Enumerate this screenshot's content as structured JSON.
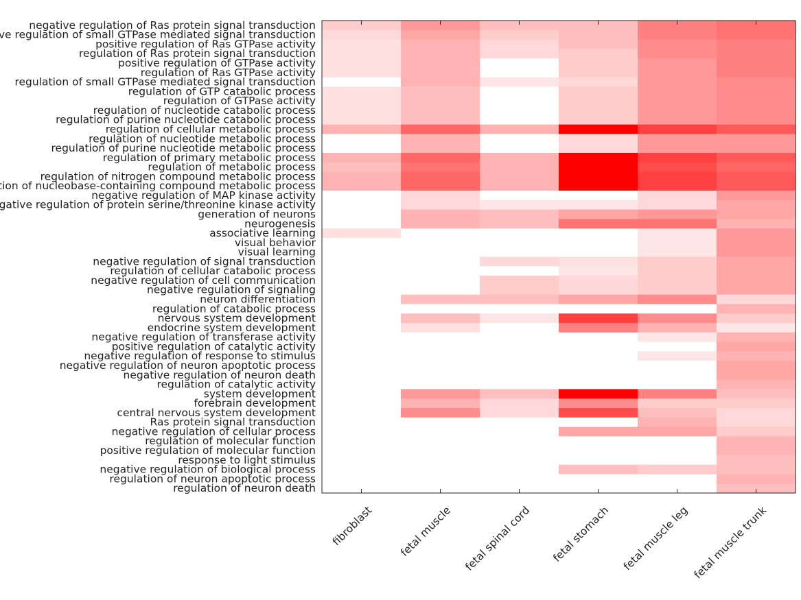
{
  "chart_data": {
    "type": "heatmap",
    "title": "",
    "xlabel": "",
    "ylabel": "",
    "color_scale": {
      "low": "#ffffff",
      "high": "#ff0000"
    },
    "columns": [
      "fibroblast",
      "fetal muscle",
      "fetal spinal cord",
      "fetal stomach",
      "fetal muscle leg",
      "fetal muscle trunk"
    ],
    "rows": [
      "negative regulation of Ras protein signal transduction",
      "negative regulation of small GTPase mediated signal transduction",
      "positive regulation of Ras GTPase activity",
      "regulation of Ras protein signal transduction",
      "positive regulation of GTPase activity",
      "regulation of Ras GTPase activity",
      "regulation of small GTPase mediated signal transduction",
      "regulation of GTP catabolic process",
      "regulation of GTPase activity",
      "regulation of nucleotide catabolic process",
      "regulation of purine nucleotide catabolic process",
      "regulation of cellular metabolic process",
      "regulation of nucleotide metabolic process",
      "regulation of purine nucleotide metabolic process",
      "regulation of primary metabolic process",
      "regulation of metabolic process",
      "regulation of nitrogen compound metabolic process",
      "regulation of nucleobase-containing compound metabolic process",
      "negative regulation of MAP kinase activity",
      "negative regulation of protein serine/threonine kinase activity",
      "generation of neurons",
      "neurogenesis",
      "associative learning",
      "visual behavior",
      "visual learning",
      "negative regulation of signal transduction",
      "regulation of cellular catabolic process",
      "negative regulation of cell communication",
      "negative regulation of signaling",
      "neuron differentiation",
      "regulation of catabolic process",
      "nervous system development",
      "endocrine system development",
      "negative regulation of transferase activity",
      "positive regulation of catalytic activity",
      "negative regulation of response to stimulus",
      "negative regulation of neuron apoptotic process",
      "negative regulation of neuron death",
      "regulation of catalytic activity",
      "system development",
      "forebrain development",
      "central nervous system development",
      "Ras protein signal transduction",
      "negative regulation of cellular process",
      "regulation of molecular function",
      "positive regulation of molecular function",
      "response to light stimulus",
      "negative regulation of biological process",
      "regulation of neuron apoptotic process",
      "regulation of neuron death"
    ],
    "values": [
      [
        0.2,
        0.4,
        0.25,
        0.25,
        0.5,
        0.55
      ],
      [
        0.15,
        0.35,
        0.2,
        0.25,
        0.5,
        0.55
      ],
      [
        0.12,
        0.3,
        0.15,
        0.25,
        0.45,
        0.5
      ],
      [
        0.12,
        0.3,
        0.15,
        0.2,
        0.45,
        0.5
      ],
      [
        0.12,
        0.3,
        0.0,
        0.2,
        0.4,
        0.5
      ],
      [
        0.12,
        0.3,
        0.0,
        0.2,
        0.4,
        0.5
      ],
      [
        0.0,
        0.3,
        0.1,
        0.15,
        0.4,
        0.45
      ],
      [
        0.12,
        0.25,
        0.0,
        0.2,
        0.4,
        0.45
      ],
      [
        0.12,
        0.25,
        0.0,
        0.2,
        0.4,
        0.45
      ],
      [
        0.12,
        0.25,
        0.0,
        0.2,
        0.4,
        0.45
      ],
      [
        0.12,
        0.25,
        0.0,
        0.2,
        0.4,
        0.45
      ],
      [
        0.3,
        0.6,
        0.3,
        1.0,
        0.75,
        0.65
      ],
      [
        0.0,
        0.3,
        0.0,
        0.15,
        0.4,
        0.4
      ],
      [
        0.0,
        0.3,
        0.0,
        0.15,
        0.4,
        0.4
      ],
      [
        0.3,
        0.6,
        0.3,
        1.0,
        0.75,
        0.65
      ],
      [
        0.25,
        0.55,
        0.3,
        1.0,
        0.7,
        0.6
      ],
      [
        0.3,
        0.6,
        0.3,
        1.0,
        0.75,
        0.65
      ],
      [
        0.3,
        0.6,
        0.3,
        1.0,
        0.75,
        0.65
      ],
      [
        0.0,
        0.15,
        0.0,
        0.0,
        0.15,
        0.4
      ],
      [
        0.0,
        0.15,
        0.1,
        0.1,
        0.15,
        0.35
      ],
      [
        0.0,
        0.3,
        0.25,
        0.35,
        0.4,
        0.35
      ],
      [
        0.0,
        0.3,
        0.25,
        0.55,
        0.55,
        0.3
      ],
      [
        0.12,
        0.0,
        0.0,
        0.0,
        0.1,
        0.4
      ],
      [
        0.0,
        0.0,
        0.0,
        0.0,
        0.1,
        0.4
      ],
      [
        0.0,
        0.0,
        0.0,
        0.0,
        0.1,
        0.4
      ],
      [
        0.0,
        0.0,
        0.15,
        0.12,
        0.2,
        0.35
      ],
      [
        0.0,
        0.0,
        0.0,
        0.1,
        0.2,
        0.35
      ],
      [
        0.0,
        0.0,
        0.2,
        0.15,
        0.2,
        0.35
      ],
      [
        0.0,
        0.0,
        0.2,
        0.15,
        0.2,
        0.35
      ],
      [
        0.0,
        0.25,
        0.25,
        0.35,
        0.45,
        0.15
      ],
      [
        0.0,
        0.0,
        0.0,
        0.0,
        0.0,
        0.3
      ],
      [
        0.0,
        0.25,
        0.1,
        0.75,
        0.45,
        0.2
      ],
      [
        0.0,
        0.12,
        0.0,
        0.5,
        0.3,
        0.1
      ],
      [
        0.0,
        0.0,
        0.0,
        0.0,
        0.1,
        0.3
      ],
      [
        0.0,
        0.0,
        0.0,
        0.0,
        0.0,
        0.35
      ],
      [
        0.0,
        0.0,
        0.0,
        0.0,
        0.1,
        0.3
      ],
      [
        0.0,
        0.0,
        0.0,
        0.0,
        0.0,
        0.35
      ],
      [
        0.0,
        0.0,
        0.0,
        0.0,
        0.0,
        0.35
      ],
      [
        0.0,
        0.0,
        0.0,
        0.0,
        0.0,
        0.3
      ],
      [
        0.0,
        0.4,
        0.25,
        1.0,
        0.5,
        0.25
      ],
      [
        0.0,
        0.3,
        0.15,
        0.45,
        0.2,
        0.2
      ],
      [
        0.0,
        0.45,
        0.15,
        0.7,
        0.25,
        0.15
      ],
      [
        0.0,
        0.0,
        0.0,
        0.0,
        0.3,
        0.15
      ],
      [
        0.0,
        0.0,
        0.0,
        0.35,
        0.35,
        0.2
      ],
      [
        0.0,
        0.0,
        0.0,
        0.0,
        0.0,
        0.3
      ],
      [
        0.0,
        0.0,
        0.0,
        0.0,
        0.0,
        0.3
      ],
      [
        0.0,
        0.0,
        0.0,
        0.0,
        0.0,
        0.25
      ],
      [
        0.0,
        0.0,
        0.0,
        0.25,
        0.2,
        0.25
      ],
      [
        0.0,
        0.0,
        0.0,
        0.0,
        0.0,
        0.3
      ],
      [
        0.0,
        0.0,
        0.0,
        0.0,
        0.0,
        0.25
      ]
    ]
  }
}
